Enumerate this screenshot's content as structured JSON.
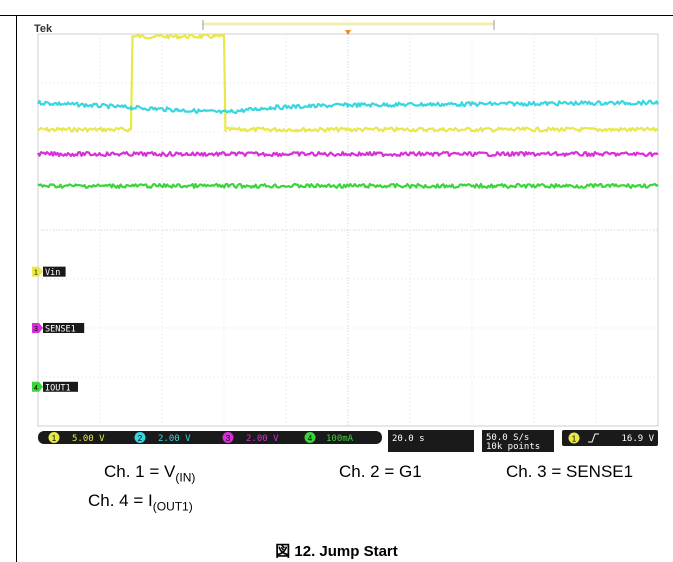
{
  "chart_data": {
    "type": "line",
    "title": "",
    "brand": "Tek",
    "xlabel": "",
    "ylabel": "",
    "grid": true,
    "xlim": [
      -100,
      100
    ],
    "ylim": [
      -4,
      4
    ],
    "x_units": "s",
    "series": [
      {
        "id": "ch1",
        "channel": "1",
        "color": "#e8e84a",
        "scale_label": "5.00 V",
        "marker_label": "Vin",
        "x": [
          -100,
          -70,
          -69.5,
          -40,
          -39.5,
          100
        ],
        "y": [
          2.05,
          2.05,
          3.95,
          3.95,
          2.05,
          2.05
        ]
      },
      {
        "id": "ch2",
        "channel": "2",
        "color": "#38d6e0",
        "scale_label": "2.00 V",
        "marker_label": "",
        "x": [
          -100,
          -70,
          -55,
          -40,
          -25,
          0,
          100
        ],
        "y": [
          2.6,
          2.5,
          2.45,
          2.4,
          2.5,
          2.55,
          2.6
        ]
      },
      {
        "id": "ch3",
        "channel": "3",
        "color": "#d830d8",
        "scale_label": "2.00 V",
        "marker_label": "SENSE1",
        "x": [
          -100,
          100
        ],
        "y": [
          1.55,
          1.55
        ]
      },
      {
        "id": "ch4",
        "channel": "4",
        "color": "#3cd43c",
        "scale_label": "100mA",
        "marker_label": "IOUT1",
        "x": [
          -100,
          100
        ],
        "y": [
          0.9,
          0.9
        ]
      }
    ],
    "markers": [
      {
        "channel": "1",
        "label": "Vin",
        "level": -0.85
      },
      {
        "channel": "3",
        "label": "SENSE1",
        "level": -2.0
      },
      {
        "channel": "4",
        "label": "IOUT1",
        "level": -3.2
      }
    ],
    "timebase": "20.0 s",
    "sample_rate": "50.0 S/s",
    "record_length": "10k points",
    "trigger": {
      "channel": "1",
      "slope": "rising",
      "level": "16.9 V"
    }
  },
  "caption": {
    "ch1_prefix": "Ch. 1 = V",
    "ch1_sub": "(IN)",
    "ch2": "Ch. 2 = G1",
    "ch3": "Ch. 3 = SENSE1",
    "ch4_prefix": "Ch. 4 = I",
    "ch4_sub": "(OUT1)"
  },
  "figure_title": "図 12. Jump Start"
}
